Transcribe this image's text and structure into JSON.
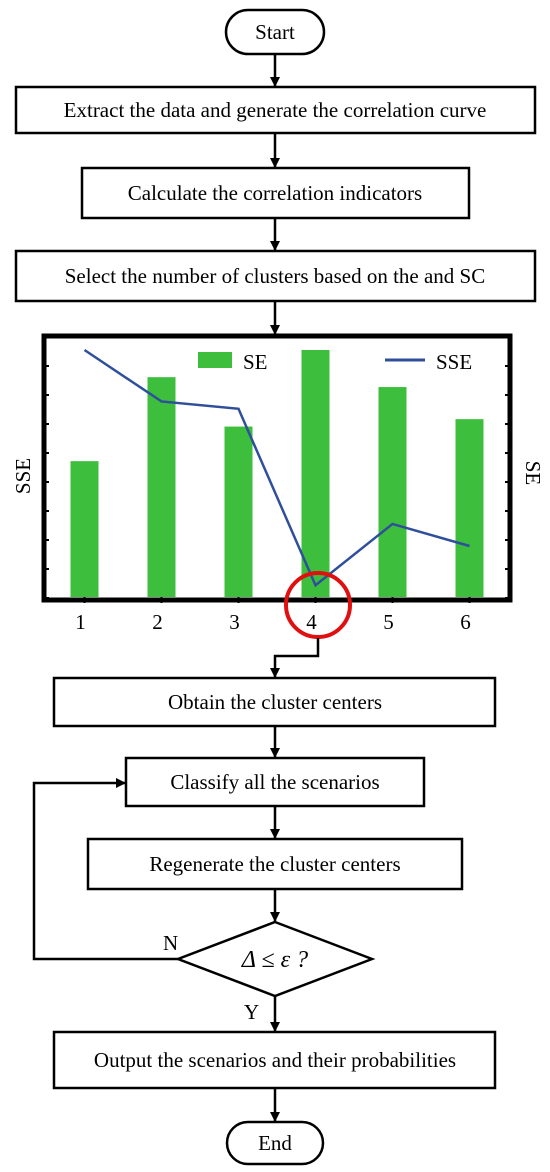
{
  "flow": {
    "start": "Start",
    "step1": "Extract the data and generate the correlation curve",
    "step2": "Calculate the correlation indicators",
    "step3": "Select the number of clusters based on the and SC",
    "step4": "Obtain the cluster centers",
    "step5": "Classify all the scenarios",
    "step6": "Regenerate the cluster centers",
    "decision": "Δ ≤ ε ?",
    "no_label": "N",
    "yes_label": "Y",
    "step7": "Output the scenarios and their probabilities",
    "end": "End"
  },
  "colors": {
    "bar": "#3dbf3d",
    "line": "#2f4f9a",
    "highlight": "#e01010"
  },
  "chart_data": {
    "type": "bar+line",
    "categories": [
      "1",
      "2",
      "3",
      "4",
      "5",
      "6"
    ],
    "series": [
      {
        "name": "SE",
        "type": "bar",
        "values": [
          0.55,
          0.89,
          0.69,
          1.0,
          0.85,
          0.72
        ]
      },
      {
        "name": "SSE",
        "type": "line",
        "values": [
          1.0,
          0.79,
          0.76,
          0.04,
          0.29,
          0.2
        ]
      }
    ],
    "ylabel_left": "SSE",
    "ylabel_right": "SE",
    "ylim": [
      0,
      1
    ],
    "highlighted_category": "4",
    "legend_position": "top"
  }
}
